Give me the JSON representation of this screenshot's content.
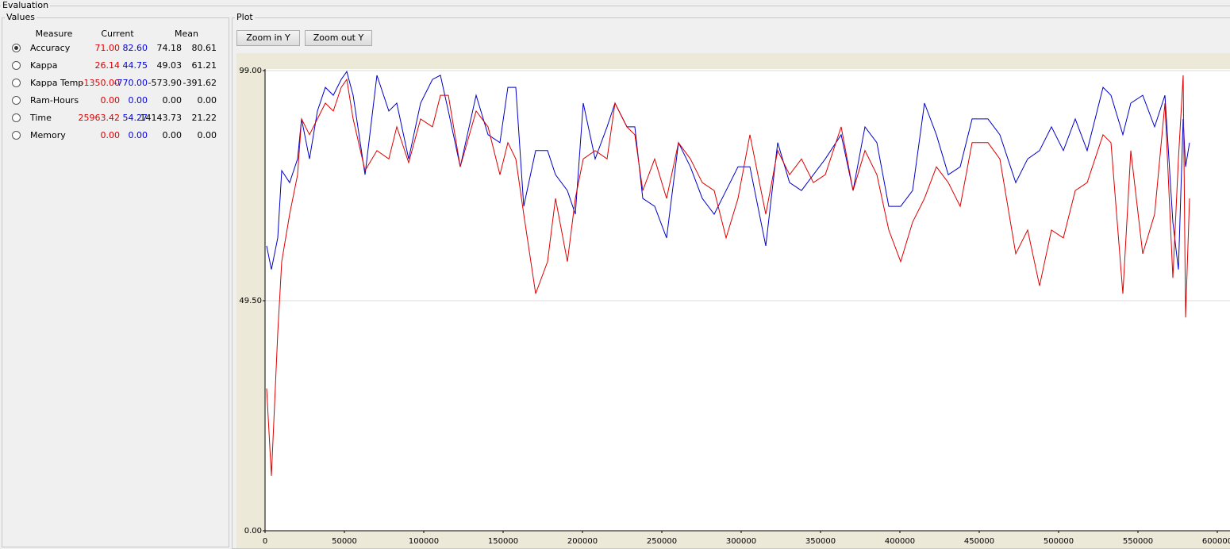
{
  "window": {
    "title": "Evaluation"
  },
  "values_panel": {
    "title": "Values",
    "headers": [
      "Measure",
      "Current",
      "Mean"
    ],
    "selected_row": 0,
    "rows": [
      {
        "label": "Accuracy",
        "current": [
          "71.00",
          "82.60"
        ],
        "mean": [
          "74.18",
          "80.61"
        ]
      },
      {
        "label": "Kappa",
        "current": [
          "26.14",
          "44.75"
        ],
        "mean": [
          "49.03",
          "61.21"
        ]
      },
      {
        "label": "Kappa Temp",
        "current": [
          "-1350.00",
          "-770.00"
        ],
        "mean": [
          "-573.90",
          "-391.62"
        ]
      },
      {
        "label": "Ram-Hours",
        "current": [
          "0.00",
          "0.00"
        ],
        "mean": [
          "0.00",
          "0.00"
        ]
      },
      {
        "label": "Time",
        "current": [
          "25963.42",
          "54.27"
        ],
        "mean": [
          "14143.73",
          "21.22"
        ]
      },
      {
        "label": "Memory",
        "current": [
          "0.00",
          "0.00"
        ],
        "mean": [
          "0.00",
          "0.00"
        ]
      }
    ]
  },
  "plot_panel": {
    "title": "Plot",
    "buttons": [
      "Zoom in Y",
      "Zoom out Y"
    ]
  },
  "chart_data": {
    "type": "line",
    "x": [
      1000,
      4000,
      8000,
      10500,
      15500,
      20500,
      23000,
      28000,
      33000,
      38000,
      43000,
      48000,
      51500,
      55500,
      63000,
      70500,
      78000,
      83000,
      90500,
      98000,
      105500,
      110500,
      115500,
      123000,
      133000,
      140500,
      148000,
      153000,
      158000,
      163000,
      170500,
      178000,
      183000,
      190500,
      195500,
      200500,
      208000,
      215500,
      220500,
      228000,
      233000,
      238000,
      245500,
      253000,
      260500,
      268000,
      275500,
      283000,
      290500,
      298000,
      305500,
      315500,
      323000,
      330500,
      338000,
      345500,
      353000,
      363000,
      370500,
      378000,
      385500,
      393000,
      400500,
      408000,
      415500,
      423000,
      430500,
      438000,
      445500,
      455500,
      463000,
      473000,
      480500,
      488000,
      495500,
      503000,
      510500,
      518000,
      528000,
      533000,
      540500,
      545500,
      553000,
      560500,
      567000,
      572000,
      575500,
      578500,
      580000,
      582500
    ],
    "series": [
      {
        "color": "#0000c8",
        "values": [
          61.3,
          56.2,
          63.0,
          77.5,
          74.9,
          80.0,
          88.6,
          80.0,
          90.3,
          95.4,
          93.7,
          97.1,
          98.8,
          93.7,
          76.6,
          98.0,
          90.3,
          92.0,
          80.0,
          92.0,
          97.1,
          98.0,
          90.3,
          78.3,
          93.7,
          85.2,
          83.5,
          95.4,
          95.4,
          69.8,
          81.8,
          81.8,
          76.6,
          73.2,
          68.1,
          92.0,
          80.0,
          86.9,
          92.0,
          86.9,
          86.9,
          71.5,
          69.8,
          63.0,
          83.5,
          78.3,
          71.5,
          68.1,
          73.2,
          78.3,
          78.3,
          61.3,
          83.5,
          74.9,
          73.2,
          76.6,
          80.0,
          85.2,
          73.2,
          86.9,
          83.5,
          69.8,
          69.8,
          73.2,
          92.0,
          85.2,
          76.6,
          78.3,
          88.6,
          88.6,
          85.2,
          74.9,
          80.0,
          81.8,
          86.9,
          81.8,
          88.6,
          81.8,
          95.4,
          93.7,
          85.2,
          92.0,
          93.7,
          86.9,
          93.7,
          66.4,
          56.2,
          88.6,
          78.3,
          83.5
        ]
      },
      {
        "color": "#dc0000",
        "values": [
          30.6,
          11.8,
          42.5,
          57.9,
          68.1,
          76.6,
          88.6,
          85.2,
          88.6,
          92.0,
          90.3,
          95.4,
          97.1,
          88.6,
          77.5,
          81.8,
          80.0,
          86.9,
          79.2,
          88.6,
          86.9,
          93.7,
          93.7,
          78.3,
          90.3,
          86.9,
          76.6,
          83.5,
          80.0,
          68.1,
          51.0,
          57.9,
          71.5,
          57.9,
          71.5,
          80.0,
          81.8,
          80.0,
          92.0,
          86.9,
          85.2,
          73.2,
          80.0,
          71.5,
          83.5,
          80.0,
          74.9,
          73.2,
          63.0,
          71.5,
          85.2,
          68.1,
          81.8,
          76.6,
          80.0,
          74.9,
          76.6,
          86.9,
          73.2,
          81.8,
          76.6,
          64.7,
          57.9,
          66.4,
          71.5,
          78.3,
          74.9,
          69.8,
          83.5,
          83.5,
          80.0,
          59.6,
          64.7,
          52.7,
          64.7,
          63.0,
          73.2,
          74.9,
          85.2,
          83.5,
          51.0,
          81.8,
          59.6,
          68.1,
          92.0,
          54.4,
          80.0,
          98.0,
          45.9,
          71.5
        ]
      }
    ],
    "xlim": [
      0,
      600000
    ],
    "ylim": [
      0,
      99
    ],
    "xticks": [
      0,
      50000,
      100000,
      150000,
      200000,
      250000,
      300000,
      350000,
      400000,
      450000,
      500000,
      550000,
      600000
    ],
    "yticks": [
      {
        "value": 0,
        "label": "0.00"
      },
      {
        "value": 49.5,
        "label": "49.50"
      },
      {
        "value": 99,
        "label": "99.00"
      }
    ],
    "grid": true
  }
}
